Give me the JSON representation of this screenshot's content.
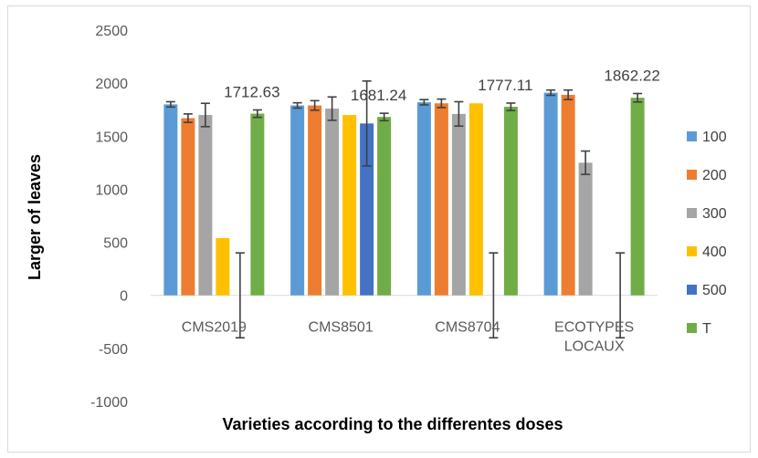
{
  "chart_data": {
    "type": "bar",
    "xlabel": "Varieties according  to the differentes doses",
    "ylabel": "Larger of leaves",
    "ylim": [
      -1000,
      2500
    ],
    "yticks": [
      -1000,
      -500,
      0,
      500,
      1000,
      1500,
      2000,
      2500
    ],
    "grid": false,
    "legend_position": "right",
    "categories": [
      [
        "CMS2019"
      ],
      [
        "CMS8501"
      ],
      [
        "CMS8704"
      ],
      [
        "ECOTYPES",
        "LOCAUX"
      ]
    ],
    "series": [
      {
        "name": "100",
        "color": "#5B9BD5",
        "values": [
          1800,
          1790,
          1820,
          1910
        ],
        "errors": [
          25,
          25,
          25,
          25
        ]
      },
      {
        "name": "200",
        "color": "#ED7D31",
        "values": [
          1670,
          1790,
          1810,
          1890
        ],
        "errors": [
          40,
          45,
          40,
          45
        ]
      },
      {
        "name": "300",
        "color": "#A5A5A5",
        "values": [
          1700,
          1760,
          1710,
          1250
        ],
        "errors": [
          110,
          110,
          115,
          110
        ]
      },
      {
        "name": "400",
        "color": "#FFC000",
        "values": [
          540,
          1700,
          1810,
          null
        ],
        "errors": [
          null,
          null,
          null,
          null
        ]
      },
      {
        "name": "500",
        "color": "#4472C4",
        "values": [
          0,
          1620,
          0,
          0
        ],
        "errors": [
          400,
          400,
          400,
          400
        ]
      },
      {
        "name": "T",
        "color": "#70AD47",
        "values": [
          1712.63,
          1681.24,
          1777.11,
          1862.22
        ],
        "errors": [
          35,
          35,
          35,
          40
        ]
      }
    ],
    "data_labels": [
      "1712.63",
      "1681.24",
      "1777.11",
      "1862.22"
    ]
  }
}
